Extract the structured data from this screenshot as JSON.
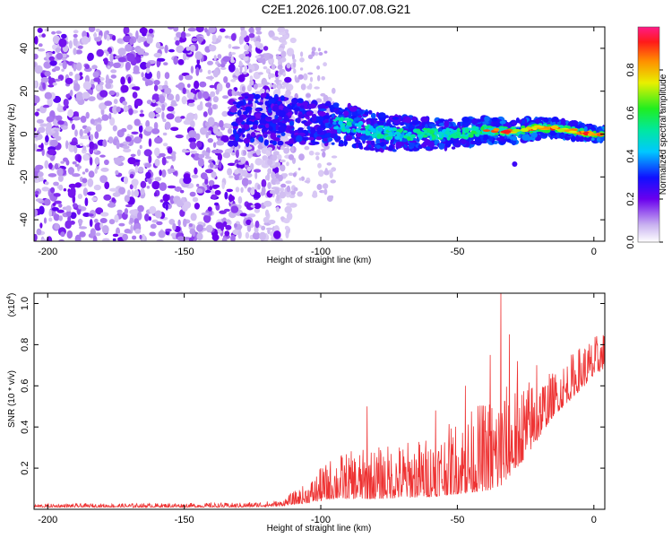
{
  "title": "C2E1.2026.100.07.08.G21",
  "chart_data": [
    {
      "type": "heatmap",
      "xlabel": "Height of straight line (km)",
      "ylabel": "Frequency (Hz)",
      "xlim": [
        -205,
        4
      ],
      "ylim": [
        -50,
        50
      ],
      "xticks": [
        -200,
        -150,
        -100,
        -50,
        0
      ],
      "yticks": [
        -40,
        -20,
        0,
        20,
        40
      ],
      "colorbar": {
        "label": "Normalized spectral amplitude",
        "range": [
          0.0,
          1.0
        ],
        "ticks": [
          0.0,
          0.2,
          0.4,
          0.6,
          0.8
        ],
        "tick_labels": [
          "0.0",
          "0.2",
          "0.4",
          "0.6",
          "0.8"
        ]
      },
      "description_points": {
        "noise_region_x": [
          -205,
          -110
        ],
        "signal_start_x": -133,
        "ridge": [
          {
            "x": -133,
            "freq": 7
          },
          {
            "x": -120,
            "freq": 7
          },
          {
            "x": -110,
            "freq": 6
          },
          {
            "x": -100,
            "freq": 5
          },
          {
            "x": -90,
            "freq": 4
          },
          {
            "x": -80,
            "freq": 1
          },
          {
            "x": -70,
            "freq": 0
          },
          {
            "x": -60,
            "freq": 0
          },
          {
            "x": -50,
            "freq": 0
          },
          {
            "x": -40,
            "freq": 2
          },
          {
            "x": -30,
            "freq": 1
          },
          {
            "x": -20,
            "freq": 3
          },
          {
            "x": -10,
            "freq": 2
          },
          {
            "x": 0,
            "freq": 0
          },
          {
            "x": 3,
            "freq": 0
          }
        ]
      }
    },
    {
      "type": "line",
      "xlabel": "Height of straight line (km)",
      "ylabel": "SNR (10 * v/v)",
      "yscale_label": "(x10",
      "yscale_exp": "4",
      "xlim": [
        -205,
        4
      ],
      "ylim": [
        0,
        1.05
      ],
      "xticks": [
        -200,
        -150,
        -100,
        -50,
        0
      ],
      "yticks": [
        0.2,
        0.4,
        0.6,
        0.8,
        1.0
      ],
      "ytick_labels": [
        "0.2",
        "0.4",
        "0.6",
        "0.8",
        "1.0"
      ],
      "series": [
        {
          "name": "SNR",
          "color": "#ee3333",
          "envelope": [
            {
              "x": -205,
              "base": 0.01,
              "peak": 0.025
            },
            {
              "x": -130,
              "base": 0.01,
              "peak": 0.03
            },
            {
              "x": -115,
              "base": 0.015,
              "peak": 0.04
            },
            {
              "x": -105,
              "base": 0.03,
              "peak": 0.12
            },
            {
              "x": -95,
              "base": 0.05,
              "peak": 0.25
            },
            {
              "x": -80,
              "base": 0.05,
              "peak": 0.28
            },
            {
              "x": -60,
              "base": 0.06,
              "peak": 0.33
            },
            {
              "x": -45,
              "base": 0.08,
              "peak": 0.45
            },
            {
              "x": -35,
              "base": 0.1,
              "peak": 0.55
            },
            {
              "x": -25,
              "base": 0.25,
              "peak": 0.6
            },
            {
              "x": -15,
              "base": 0.45,
              "peak": 0.65
            },
            {
              "x": -5,
              "base": 0.58,
              "peak": 0.78
            },
            {
              "x": 3,
              "base": 0.68,
              "peak": 0.85
            }
          ],
          "spikes": [
            {
              "x": -100,
              "value": 0.2
            },
            {
              "x": -83,
              "value": 0.5
            },
            {
              "x": -58,
              "value": 0.48
            },
            {
              "x": -47,
              "value": 0.6
            },
            {
              "x": -38,
              "value": 0.75
            },
            {
              "x": -34,
              "value": 1.05
            },
            {
              "x": -31,
              "value": 0.85
            },
            {
              "x": -28,
              "value": 0.72
            },
            {
              "x": -21,
              "value": 0.7
            }
          ]
        }
      ]
    }
  ]
}
